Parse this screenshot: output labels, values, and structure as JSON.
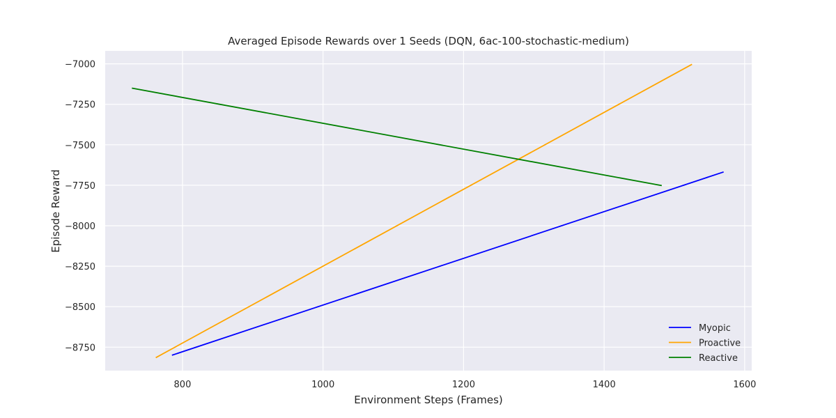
{
  "chart_data": {
    "type": "line",
    "title": "Averaged Episode Rewards over 1 Seeds (DQN, 6ac-100-stochastic-medium)",
    "xlabel": "Environment Steps (Frames)",
    "ylabel": "Episode Reward",
    "xlim": [
      690,
      1610
    ],
    "ylim": [
      -8895,
      -6920
    ],
    "xticks": [
      800,
      1000,
      1200,
      1400,
      1600
    ],
    "yticks": [
      -7000,
      -7250,
      -7500,
      -7750,
      -8000,
      -8250,
      -8500,
      -8750
    ],
    "grid": true,
    "legend_position": "lower-right",
    "series": [
      {
        "name": "Myopic",
        "color": "#0000ff",
        "x": [
          785,
          1570
        ],
        "y": [
          -8800,
          -7668
        ]
      },
      {
        "name": "Proactive",
        "color": "#ffa500",
        "x": [
          762,
          1525
        ],
        "y": [
          -8815,
          -7003
        ]
      },
      {
        "name": "Reactive",
        "color": "#008000",
        "x": [
          728,
          1482
        ],
        "y": [
          -7150,
          -7752
        ]
      }
    ]
  },
  "colors": {
    "plot_background": "#eaeaf2",
    "grid": "#ffffff",
    "text": "#262626"
  }
}
